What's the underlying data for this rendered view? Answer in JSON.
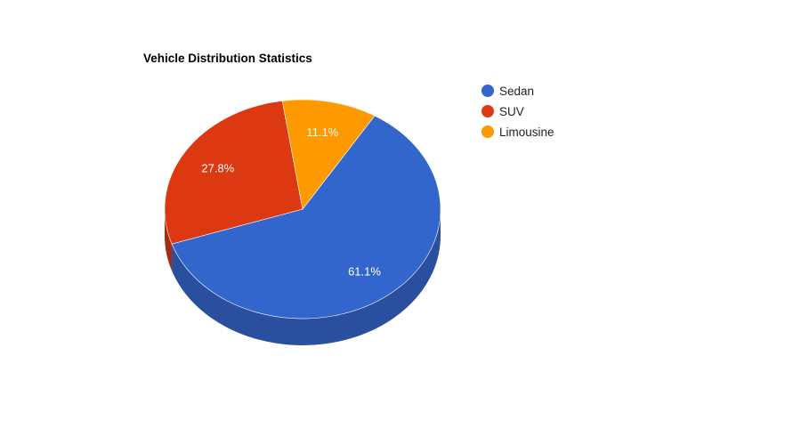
{
  "chart_data": {
    "type": "pie",
    "title": "Vehicle Distribution Statistics",
    "three_d": true,
    "legend_position": "right",
    "start_angle_deg": 58.5,
    "slices": [
      {
        "name": "Sedan",
        "value": 61.1,
        "label": "61.1%",
        "color": "#3366cc",
        "side_color": "#2a4f9e"
      },
      {
        "name": "SUV",
        "value": 27.8,
        "label": "27.8%",
        "color": "#dc3912",
        "side_color": "#a82b0e"
      },
      {
        "name": "Limousine",
        "value": 11.1,
        "label": "11.1%",
        "color": "#ff9900",
        "side_color": "#c47600"
      }
    ]
  }
}
